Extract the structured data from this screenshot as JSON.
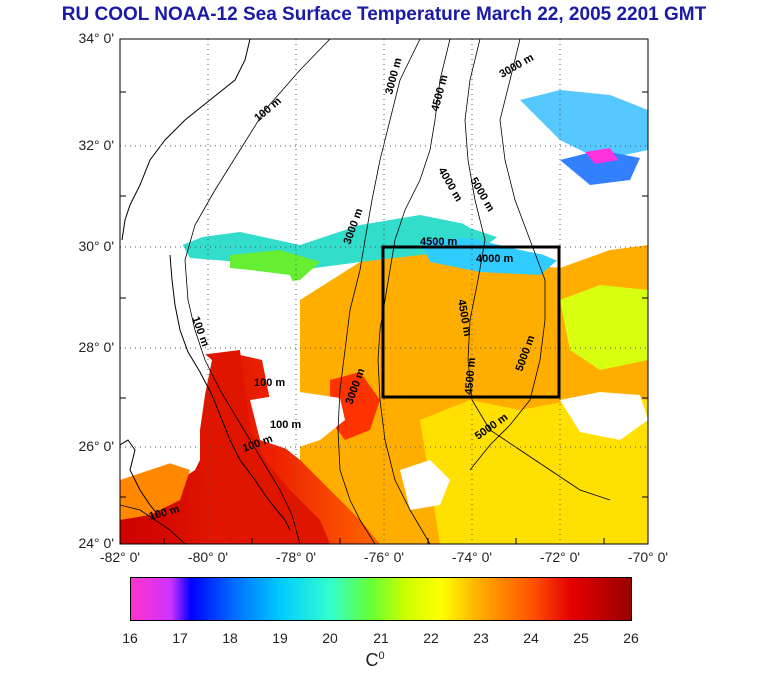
{
  "title": "RU COOL  NOAA-12 Sea Surface Temperature March 22, 2005 2201 GMT",
  "latitude_labels": [
    "34° 0'",
    "32° 0'",
    "30° 0'",
    "28° 0'",
    "26° 0'",
    "24° 0'"
  ],
  "longitude_labels": [
    "-82° 0'",
    "-80° 0'",
    "-78° 0'",
    "-76° 0'",
    "-74° 0'",
    "-72° 0'",
    "-70° 0'"
  ],
  "colorbar": {
    "ticks": [
      "16",
      "17",
      "18",
      "19",
      "20",
      "21",
      "22",
      "23",
      "24",
      "25",
      "26"
    ],
    "unit": "C",
    "unit_sup": "0"
  },
  "contour_labels": {
    "shelf": "100 m",
    "c3000": "3000 m",
    "c4000": "4000 m",
    "c4500": "4500 m",
    "c5000": "5000 m"
  },
  "colors": {
    "title": "#1a1aa6",
    "warm": "#e01500",
    "box": "#000000"
  }
}
